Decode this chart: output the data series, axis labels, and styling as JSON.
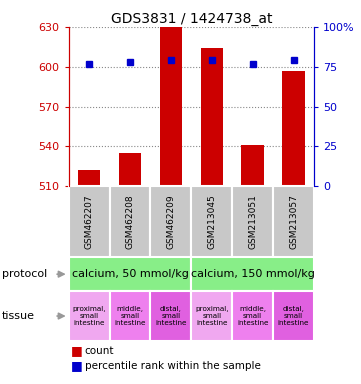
{
  "title": "GDS3831 / 1424738_at",
  "samples": [
    "GSM462207",
    "GSM462208",
    "GSM462209",
    "GSM213045",
    "GSM213051",
    "GSM213057"
  ],
  "counts": [
    522,
    535,
    630,
    614,
    541,
    597
  ],
  "percentiles": [
    77,
    78,
    79,
    79,
    77,
    79
  ],
  "ylim_left": [
    510,
    630
  ],
  "ylim_right": [
    0,
    100
  ],
  "yticks_left": [
    510,
    540,
    570,
    600,
    630
  ],
  "yticks_right": [
    0,
    25,
    50,
    75,
    100
  ],
  "bar_color": "#cc0000",
  "dot_color": "#0000cc",
  "bar_baseline": 510,
  "protocol_labels": [
    "calcium, 50 mmol/kg",
    "calcium, 150 mmol/kg"
  ],
  "protocol_color": "#88ee88",
  "tissue_labels": [
    "proximal,\nsmall\nintestine",
    "middle,\nsmall\nintestine",
    "distal,\nsmall\nintestine",
    "proximal,\nsmall\nintestine",
    "middle,\nsmall\nintestine",
    "distal,\nsmall\nintestine"
  ],
  "tissue_colors": [
    "#f0a8f0",
    "#ee80ee",
    "#e060e0",
    "#f0a8f0",
    "#ee80ee",
    "#e060e0"
  ],
  "sample_bg": "#c8c8c8",
  "legend_count_color": "#cc0000",
  "legend_dot_color": "#0000cc",
  "grid_color": "#888888",
  "left_axis_color": "#cc0000",
  "right_axis_color": "#0000cc",
  "arrow_color": "#999999"
}
